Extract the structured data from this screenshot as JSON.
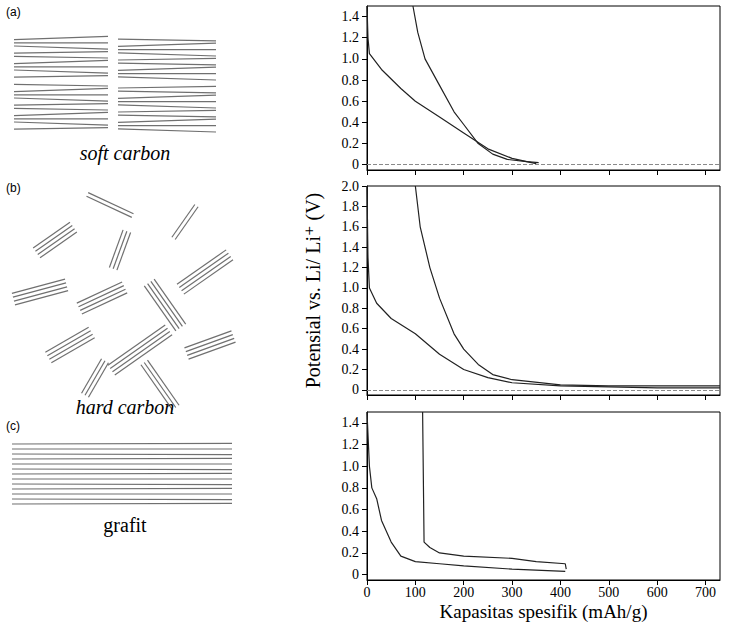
{
  "diagrams": [
    {
      "letter": "(a)",
      "label": "soft carbon"
    },
    {
      "letter": "(b)",
      "label": "hard carbon"
    },
    {
      "letter": "(c)",
      "label": "grafit"
    }
  ],
  "chart_data": [
    {
      "type": "line",
      "xlim": [
        0,
        730
      ],
      "xticks": [
        0,
        100,
        200,
        300,
        400,
        500,
        600,
        700
      ],
      "ylim": [
        -0.05,
        1.5
      ],
      "yticks": [
        0,
        0.2,
        0.4,
        0.6,
        0.8,
        {
          "value": 1,
          "label": "1.0"
        },
        1.2,
        1.4
      ],
      "tick_labels": "y",
      "hlines": [
        0
      ],
      "series": [
        {
          "color": "#222222",
          "x": [
            0,
            2,
            5,
            30,
            70,
            100,
            150,
            200,
            250,
            300,
            340,
            350
          ],
          "values": [
            1.5,
            1.2,
            1.05,
            0.9,
            0.72,
            0.6,
            0.45,
            0.3,
            0.15,
            0.06,
            0.02,
            0.01
          ]
        },
        {
          "color": "#222222",
          "x": [
            95,
            105,
            120,
            150,
            180,
            200,
            230,
            260,
            290,
            330,
            355
          ],
          "values": [
            1.5,
            1.25,
            1.0,
            0.75,
            0.5,
            0.38,
            0.2,
            0.1,
            0.05,
            0.03,
            0.02
          ]
        }
      ]
    },
    {
      "type": "line",
      "xlim": [
        0,
        730
      ],
      "xticks": [
        0,
        100,
        200,
        300,
        400,
        500,
        600,
        700
      ],
      "ylim": [
        -0.05,
        2.0
      ],
      "yticks": [
        0,
        0.2,
        0.4,
        0.6,
        0.8,
        {
          "value": 1,
          "label": "1.0"
        },
        1.2,
        1.4,
        1.6,
        1.8,
        {
          "value": 2,
          "label": "2.0"
        }
      ],
      "ylabel": "Potensial vs. Li/ Li⁺ (V)",
      "tick_labels": "y",
      "hlines": [
        0
      ],
      "series": [
        {
          "color": "#222222",
          "x": [
            0,
            2,
            5,
            20,
            50,
            100,
            150,
            200,
            250,
            300,
            400,
            500,
            600,
            730
          ],
          "values": [
            2.0,
            1.3,
            1.0,
            0.85,
            0.7,
            0.55,
            0.35,
            0.2,
            0.12,
            0.07,
            0.04,
            0.03,
            0.02,
            0.02
          ]
        },
        {
          "color": "#222222",
          "x": [
            100,
            110,
            130,
            150,
            180,
            200,
            230,
            260,
            300,
            400,
            500,
            600,
            730
          ],
          "values": [
            2.0,
            1.6,
            1.2,
            0.9,
            0.55,
            0.4,
            0.25,
            0.15,
            0.1,
            0.05,
            0.04,
            0.04,
            0.04
          ]
        }
      ]
    },
    {
      "type": "line",
      "xlim": [
        0,
        730
      ],
      "xticks": [
        0,
        100,
        200,
        300,
        400,
        500,
        600,
        700
      ],
      "ylim": [
        -0.05,
        1.5
      ],
      "yticks": [
        0,
        0.2,
        0.4,
        0.6,
        0.8,
        {
          "value": 1,
          "label": "1.0"
        },
        1.2,
        1.4
      ],
      "xlabel": "Kapasitas spesifik (mAh/g)",
      "series": [
        {
          "color": "#222222",
          "x": [
            0,
            5,
            10,
            20,
            30,
            50,
            70,
            100,
            150,
            200,
            300,
            410
          ],
          "values": [
            1.5,
            1.0,
            0.8,
            0.7,
            0.5,
            0.3,
            0.17,
            0.12,
            0.1,
            0.08,
            0.05,
            0.03
          ]
        },
        {
          "color": "#222222",
          "x": [
            115,
            118,
            130,
            150,
            200,
            300,
            350,
            410,
            412
          ],
          "values": [
            1.5,
            0.3,
            0.25,
            0.2,
            0.17,
            0.15,
            0.12,
            0.1,
            0.05
          ]
        }
      ]
    }
  ]
}
